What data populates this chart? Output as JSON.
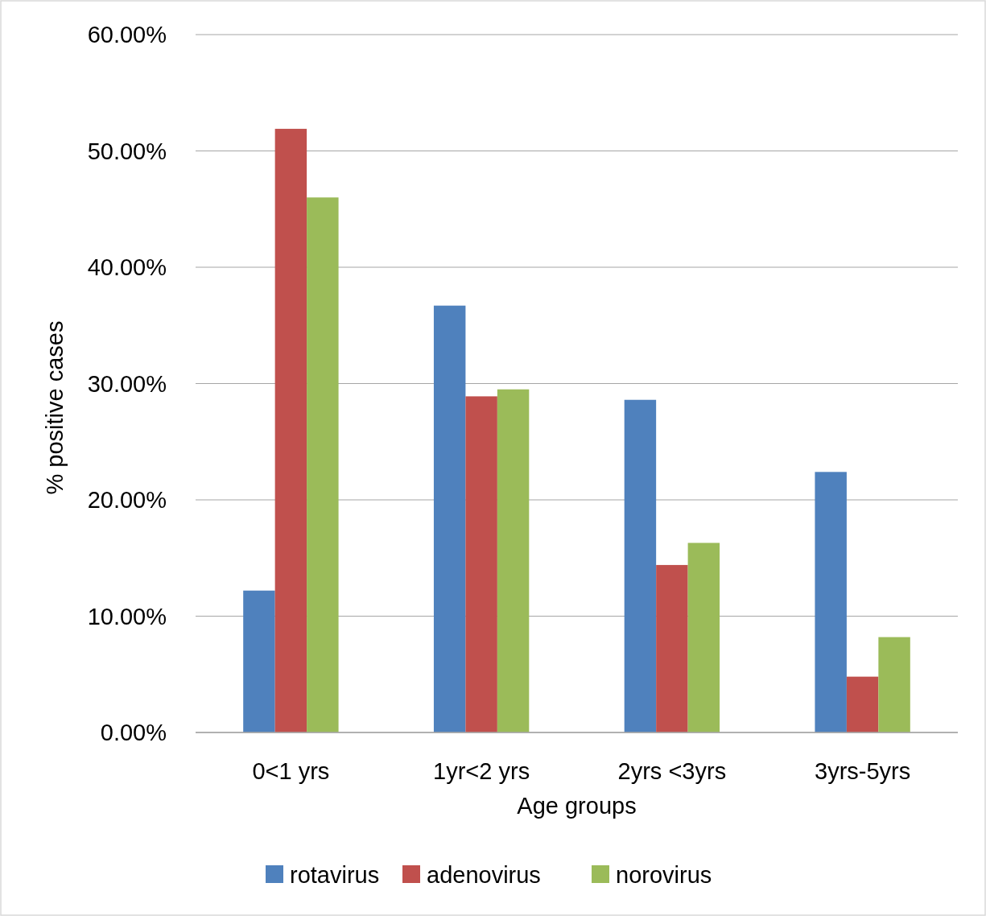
{
  "chart_data": {
    "type": "bar",
    "xlabel": "Age groups",
    "ylabel": "% positive cases",
    "categories": [
      "0<1 yrs",
      "1yr<2 yrs",
      "2yrs <3yrs",
      "3yrs-5yrs"
    ],
    "series": [
      {
        "name": "rotavirus",
        "color": "#4f81bd",
        "values": [
          12.2,
          36.7,
          28.6,
          22.4
        ]
      },
      {
        "name": "adenovirus",
        "color": "#c0504d",
        "values": [
          51.9,
          28.9,
          14.4,
          4.8
        ]
      },
      {
        "name": "norovirus",
        "color": "#9bbb59",
        "values": [
          46.0,
          29.5,
          16.3,
          8.2
        ]
      }
    ],
    "ylim": [
      0,
      60
    ],
    "yticks": [
      {
        "value": 0,
        "label": "0.00%"
      },
      {
        "value": 10,
        "label": "10.00%"
      },
      {
        "value": 20,
        "label": "20.00%"
      },
      {
        "value": 30,
        "label": "30.00%"
      },
      {
        "value": 40,
        "label": "40.00%"
      },
      {
        "value": 50,
        "label": "50.00%"
      },
      {
        "value": 60,
        "label": "60.00%"
      }
    ],
    "grid": "y",
    "legend": "bottom"
  }
}
